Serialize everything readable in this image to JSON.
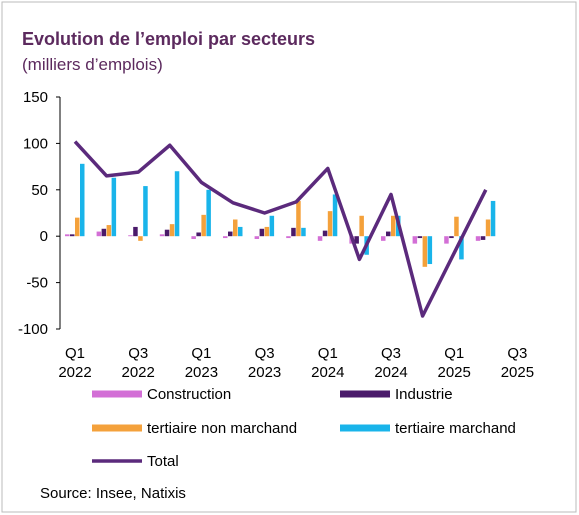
{
  "chart_data": {
    "type": "bar",
    "title": "Evolution de l’emploi par secteurs",
    "subtitle": "(milliers d’emplois)",
    "source": "Source: Insee, Natixis",
    "categories": [
      "Q1 2022",
      null,
      "Q3 2022",
      null,
      "Q1 2023",
      null,
      "Q3 2023",
      null,
      "Q1 2024",
      null,
      "Q3 2024",
      null,
      "Q1 2025",
      null,
      "Q3 2025"
    ],
    "ylim": [
      -100,
      150
    ],
    "yticks": [
      -100,
      -50,
      0,
      50,
      100,
      150
    ],
    "series": [
      {
        "name": "Construction",
        "type": "bar",
        "color": "#d36fd6",
        "values": [
          2,
          5,
          1,
          2,
          -3,
          -2,
          -3,
          -2,
          -5,
          -8,
          -5,
          -8,
          -8,
          -5,
          null
        ]
      },
      {
        "name": "Industrie",
        "type": "bar",
        "color": "#4a1a6a",
        "values": [
          2,
          8,
          10,
          7,
          4,
          5,
          8,
          9,
          6,
          -8,
          5,
          -2,
          -2,
          -4,
          null
        ]
      },
      {
        "name": "tertiaire non marchand",
        "type": "bar",
        "color": "#f4a13b",
        "values": [
          20,
          12,
          -5,
          13,
          23,
          18,
          10,
          38,
          27,
          22,
          22,
          -33,
          21,
          18,
          null
        ]
      },
      {
        "name": "tertiaire marchand",
        "type": "bar",
        "color": "#19b4ea",
        "values": [
          78,
          63,
          54,
          70,
          50,
          10,
          22,
          9,
          45,
          -20,
          22,
          -30,
          -25,
          38,
          null
        ]
      },
      {
        "name": "Total",
        "type": "line",
        "color": "#5b2a7c",
        "values": [
          102,
          65,
          69,
          98,
          58,
          36,
          25,
          37,
          73,
          -25,
          45,
          -86,
          -18,
          50,
          null
        ]
      }
    ]
  }
}
